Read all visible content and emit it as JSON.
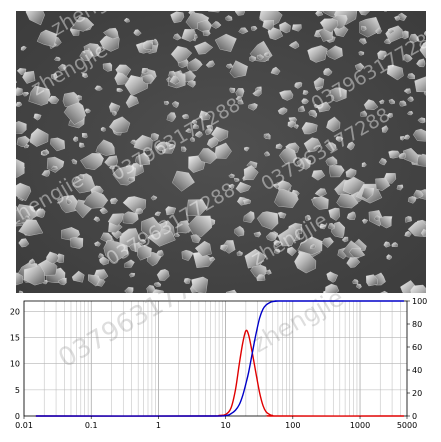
{
  "watermarks": {
    "company": "zhengjie",
    "phone": "037963177288"
  },
  "chart_data": {
    "type": "line",
    "x_scale": "log",
    "xlim": [
      0.01,
      5000
    ],
    "x_ticks": [
      "0.01",
      "0.1",
      "1",
      "10",
      "100",
      "1000",
      "5000"
    ],
    "y_left": {
      "lim": [
        0,
        22
      ],
      "ticks": [
        "0",
        "5",
        "10",
        "15",
        "20"
      ]
    },
    "y_right": {
      "lim": [
        0,
        100
      ],
      "ticks": [
        "0",
        "20",
        "40",
        "60",
        "80",
        "100"
      ]
    },
    "grid": true,
    "series": [
      {
        "color": "#e00000",
        "axis": "left",
        "x": [
          0.015,
          5,
          8,
          10,
          12,
          14,
          16,
          18,
          20,
          22,
          25,
          28,
          32,
          36,
          40,
          45,
          50,
          60,
          4500
        ],
        "y": [
          0,
          0,
          0.1,
          0.3,
          1.5,
          5,
          10,
          14,
          16.3,
          15.5,
          12,
          8.5,
          4.5,
          2,
          0.8,
          0.3,
          0.1,
          0,
          0
        ]
      },
      {
        "color": "#0000c8",
        "axis": "right",
        "x": [
          0.015,
          5,
          10,
          12,
          14,
          16,
          18,
          20,
          22,
          25,
          28,
          32,
          36,
          40,
          45,
          50,
          60,
          80,
          4500
        ],
        "y": [
          0,
          0,
          0.5,
          2,
          5,
          10,
          18,
          28,
          38,
          55,
          70,
          85,
          93,
          96.5,
          98.5,
          99.5,
          100,
          100,
          100
        ]
      }
    ]
  }
}
